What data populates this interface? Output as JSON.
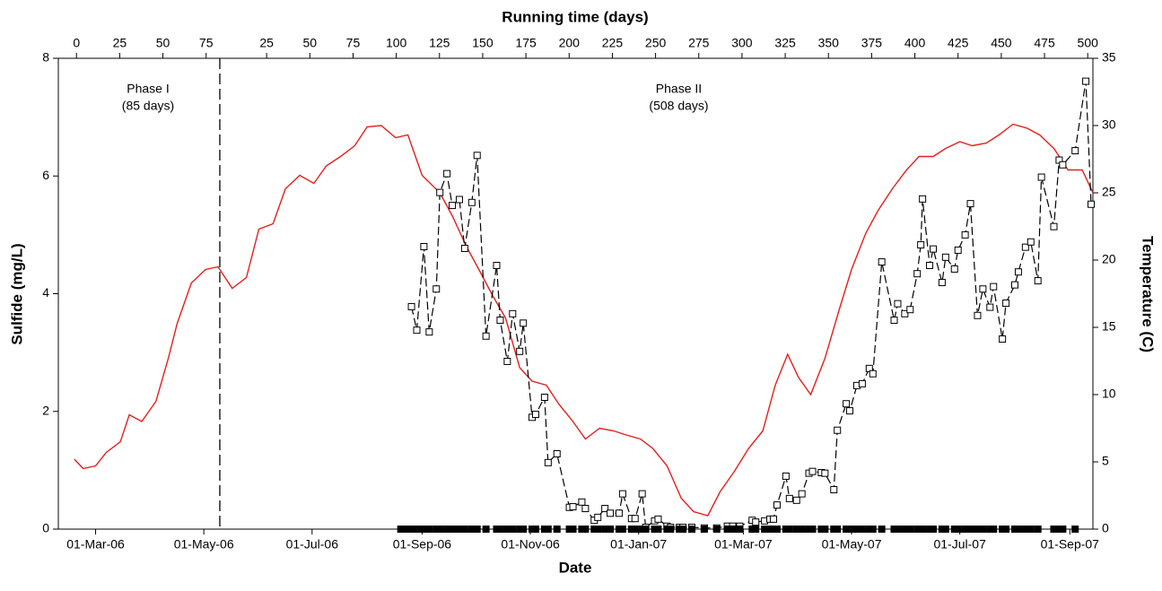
{
  "chart_data": {
    "type": "line",
    "xlabel": "Date",
    "ylabel": "Sulfide (mg/L)",
    "y2label": "Temperature (C)",
    "x2label": "Running time (days)",
    "xlim": [
      "2006-02-08",
      "2007-09-14"
    ],
    "xticks": [
      {
        "value": "2006-03-01",
        "label": "01-Mar-06"
      },
      {
        "value": "2006-05-01",
        "label": "01-May-06"
      },
      {
        "value": "2006-07-01",
        "label": "01-Jul-06"
      },
      {
        "value": "2006-09-01",
        "label": "01-Sep-06"
      },
      {
        "value": "2006-11-01",
        "label": "01-Nov-06"
      },
      {
        "value": "2007-01-01",
        "label": "01-Jan-07"
      },
      {
        "value": "2007-03-01",
        "label": "01-Mar-07"
      },
      {
        "value": "2007-05-01",
        "label": "01-May-07"
      },
      {
        "value": "2007-07-01",
        "label": "01-Jul-07"
      },
      {
        "value": "2007-09-01",
        "label": "01-Sep-07"
      }
    ],
    "x2lim": [
      -95.5,
      503
    ],
    "x2ticks": [
      {
        "value": -85,
        "label": "0"
      },
      {
        "value": -60,
        "label": "25"
      },
      {
        "value": -35,
        "label": "50"
      },
      {
        "value": -10,
        "label": "75"
      },
      25,
      50,
      75,
      100,
      125,
      150,
      175,
      200,
      225,
      250,
      275,
      300,
      325,
      350,
      375,
      400,
      425,
      450,
      475,
      500
    ],
    "ylim": [
      0,
      8
    ],
    "yticks": [
      0,
      2,
      4,
      6,
      8
    ],
    "y2lim": [
      0,
      35
    ],
    "y2ticks": [
      0,
      5,
      10,
      15,
      20,
      25,
      30,
      35
    ],
    "phase_boundary": "2006-05-10",
    "annotations": [
      [
        "Phase I",
        "(85 days)"
      ],
      [
        "Phase II",
        "(508 days)"
      ]
    ],
    "series": [
      {
        "color": "#e3201c",
        "axis": "y2",
        "marker": "none",
        "x": [
          "2006-02-17",
          "2006-02-22",
          "2006-03-01",
          "2006-03-07",
          "2006-03-15",
          "2006-03-20",
          "2006-03-27",
          "2006-04-04",
          "2006-04-11",
          "2006-04-16",
          "2006-04-24",
          "2006-05-02",
          "2006-05-09",
          "2006-05-17",
          "2006-05-25",
          "2006-06-01",
          "2006-06-09",
          "2006-06-16",
          "2006-06-24",
          "2006-07-02",
          "2006-07-09",
          "2006-07-17",
          "2006-07-25",
          "2006-08-01",
          "2006-08-09",
          "2006-08-17",
          "2006-08-24",
          "2006-09-01",
          "2006-09-11",
          "2006-09-18",
          "2006-09-26",
          "2006-10-03",
          "2006-10-11",
          "2006-10-18",
          "2006-10-26",
          "2006-11-02",
          "2006-11-10",
          "2006-11-17",
          "2006-11-25",
          "2006-12-02",
          "2006-12-10",
          "2006-12-18",
          "2006-12-25",
          "2007-01-02",
          "2007-01-09",
          "2007-01-17",
          "2007-01-25",
          "2007-02-01",
          "2007-02-09",
          "2007-02-16",
          "2007-02-24",
          "2007-03-04",
          "2007-03-12",
          "2007-03-19",
          "2007-03-26",
          "2007-04-01",
          "2007-04-08",
          "2007-04-16",
          "2007-04-24",
          "2007-05-01",
          "2007-05-09",
          "2007-05-16",
          "2007-05-24",
          "2007-06-01",
          "2007-06-08",
          "2007-06-16",
          "2007-06-23",
          "2007-07-01",
          "2007-07-08",
          "2007-07-16",
          "2007-07-23",
          "2007-07-31",
          "2007-08-08",
          "2007-08-15",
          "2007-08-23",
          "2007-08-31",
          "2007-09-08",
          "2007-09-14"
        ],
        "values": [
          5.2,
          4.5,
          4.7,
          5.7,
          6.5,
          8.5,
          8,
          9.5,
          12.7,
          15.3,
          18.3,
          19.3,
          19.5,
          17.9,
          18.7,
          22.3,
          22.7,
          25.3,
          26.3,
          25.7,
          27,
          27.7,
          28.5,
          29.9,
          30,
          29.1,
          29.3,
          26.3,
          25,
          23.3,
          21,
          19.3,
          17.3,
          15.7,
          12,
          11,
          10.7,
          9.3,
          8,
          6.7,
          7.5,
          7.3,
          7,
          6.7,
          6,
          4.7,
          2.3,
          1.3,
          1,
          2.8,
          4.3,
          6,
          7.3,
          10.7,
          13,
          11.3,
          10,
          12.7,
          16.3,
          19.3,
          22,
          23.7,
          25.3,
          26.7,
          27.7,
          27.7,
          28.3,
          28.8,
          28.5,
          28.7,
          29.3,
          30.1,
          29.8,
          29.3,
          28.3,
          26.7,
          26.7,
          25
        ]
      },
      {
        "color": "#000000",
        "axis": "y",
        "marker": "open-square",
        "dashed": true,
        "x": [
          "2006-08-26",
          "2006-08-29",
          "2006-09-02",
          "2006-09-05",
          "2006-09-09",
          "2006-09-11",
          "2006-09-15",
          "2006-09-18",
          "2006-09-22",
          "2006-09-25",
          "2006-09-29",
          "2006-10-02",
          "2006-10-07",
          "2006-10-13",
          "2006-10-15",
          "2006-10-19",
          "2006-10-22",
          "2006-10-26",
          "2006-10-28",
          "2006-11-02",
          "2006-11-04",
          "2006-11-09",
          "2006-11-11",
          "2006-11-16",
          "2006-11-23",
          "2006-11-25",
          "2006-11-30",
          "2006-12-02",
          "2006-12-07",
          "2006-12-09",
          "2006-12-13",
          "2006-12-16",
          "2006-12-21",
          "2006-12-23",
          "2006-12-28",
          "2006-12-30",
          "2007-01-03",
          "2007-01-05",
          "2007-01-10",
          "2007-01-12",
          "2007-01-17",
          "2007-01-19",
          "2007-01-24",
          "2007-01-26",
          "2007-01-31",
          "2007-02-07",
          "2007-02-14",
          "2007-02-20",
          "2007-02-23",
          "2007-02-27",
          "2007-03-06",
          "2007-03-08",
          "2007-03-13",
          "2007-03-16",
          "2007-03-18",
          "2007-03-20",
          "2007-03-25",
          "2007-03-27",
          "2007-03-31",
          "2007-04-03",
          "2007-04-07",
          "2007-04-09",
          "2007-04-14",
          "2007-04-16",
          "2007-04-21",
          "2007-04-23",
          "2007-04-28",
          "2007-04-30",
          "2007-05-04",
          "2007-05-07",
          "2007-05-11",
          "2007-05-13",
          "2007-05-18",
          "2007-05-25",
          "2007-05-27",
          "2007-05-31",
          "2007-06-03",
          "2007-06-07",
          "2007-06-09",
          "2007-06-10",
          "2007-06-14",
          "2007-06-16",
          "2007-06-21",
          "2007-06-23",
          "2007-06-28",
          "2007-06-30",
          "2007-07-04",
          "2007-07-07",
          "2007-07-11",
          "2007-07-14",
          "2007-07-18",
          "2007-07-20",
          "2007-07-25",
          "2007-07-27",
          "2007-08-01",
          "2007-08-03",
          "2007-08-07",
          "2007-08-10",
          "2007-08-14",
          "2007-08-16",
          "2007-08-23",
          "2007-08-26",
          "2007-08-28",
          "2007-09-04",
          "2007-09-10",
          "2007-09-13"
        ],
        "values": [
          3.78,
          3.38,
          4.8,
          3.35,
          4.08,
          5.72,
          6.04,
          5.5,
          5.6,
          4.77,
          5.55,
          6.35,
          3.28,
          4.48,
          3.55,
          2.85,
          3.66,
          3.02,
          3.5,
          1.9,
          1.95,
          2.24,
          1.13,
          1.28,
          0.37,
          0.38,
          0.46,
          0.35,
          0.15,
          0.2,
          0.35,
          0.27,
          0.27,
          0.6,
          0.18,
          0.18,
          0.6,
          0.03,
          0.14,
          0.17,
          0.05,
          0.03,
          0.03,
          0.03,
          0.03,
          0.02,
          0.02,
          0.05,
          0.05,
          0.05,
          0.15,
          0.12,
          0.14,
          0.17,
          0.17,
          0.41,
          0.9,
          0.52,
          0.49,
          0.6,
          0.95,
          0.98,
          0.96,
          0.95,
          0.67,
          1.68,
          2.13,
          2.01,
          2.44,
          2.47,
          2.73,
          2.64,
          4.54,
          3.55,
          3.83,
          3.66,
          3.73,
          4.34,
          4.83,
          5.61,
          4.48,
          4.76,
          4.19,
          4.62,
          4.42,
          4.74,
          5.0,
          5.53,
          3.63,
          4.08,
          3.77,
          4.12,
          3.23,
          3.84,
          4.15,
          4.37,
          4.79,
          4.88,
          4.22,
          5.98,
          5.14,
          6.27,
          6.19,
          6.43,
          7.61,
          5.52
        ]
      },
      {
        "color": "#000000",
        "axis": "y",
        "marker": "filled-square",
        "dashed": false,
        "noline": true,
        "x": [
          "2006-08-20",
          "2006-08-23",
          "2006-08-26",
          "2006-08-29",
          "2006-09-02",
          "2006-09-05",
          "2006-09-09",
          "2006-09-11",
          "2006-09-15",
          "2006-09-18",
          "2006-09-22",
          "2006-09-25",
          "2006-09-29",
          "2006-10-02",
          "2006-10-07",
          "2006-10-13",
          "2006-10-15",
          "2006-10-19",
          "2006-10-22",
          "2006-10-26",
          "2006-10-28",
          "2006-11-02",
          "2006-11-04",
          "2006-11-09",
          "2006-11-11",
          "2006-11-16",
          "2006-11-23",
          "2006-11-25",
          "2006-11-30",
          "2006-12-02",
          "2006-12-07",
          "2006-12-09",
          "2006-12-13",
          "2006-12-16",
          "2006-12-21",
          "2006-12-23",
          "2006-12-28",
          "2006-12-30",
          "2007-01-03",
          "2007-01-05",
          "2007-01-10",
          "2007-01-12",
          "2007-01-17",
          "2007-01-19",
          "2007-01-24",
          "2007-01-26",
          "2007-01-31",
          "2007-02-07",
          "2007-02-14",
          "2007-02-20",
          "2007-02-23",
          "2007-02-27",
          "2007-03-06",
          "2007-03-08",
          "2007-03-13",
          "2007-03-16",
          "2007-03-18",
          "2007-03-20",
          "2007-03-25",
          "2007-03-27",
          "2007-03-31",
          "2007-04-03",
          "2007-04-07",
          "2007-04-09",
          "2007-04-14",
          "2007-04-16",
          "2007-04-21",
          "2007-04-23",
          "2007-04-28",
          "2007-04-30",
          "2007-05-04",
          "2007-05-07",
          "2007-05-11",
          "2007-05-13",
          "2007-05-18",
          "2007-05-25",
          "2007-05-27",
          "2007-05-31",
          "2007-06-03",
          "2007-06-07",
          "2007-06-09",
          "2007-06-10",
          "2007-06-14",
          "2007-06-16",
          "2007-06-21",
          "2007-06-23",
          "2007-06-28",
          "2007-06-30",
          "2007-07-04",
          "2007-07-07",
          "2007-07-11",
          "2007-07-14",
          "2007-07-18",
          "2007-07-20",
          "2007-07-25",
          "2007-07-27",
          "2007-08-01",
          "2007-08-03",
          "2007-08-07",
          "2007-08-10",
          "2007-08-14",
          "2007-08-23",
          "2007-08-26",
          "2007-08-28",
          "2007-09-04"
        ],
        "values": [
          0,
          0,
          0,
          0,
          0,
          0,
          0,
          0,
          0,
          0,
          0,
          0,
          0,
          0,
          0,
          0,
          0,
          0,
          0,
          0,
          0,
          0,
          0,
          0,
          0,
          0,
          0,
          0,
          0,
          0,
          0,
          0,
          0,
          0,
          0,
          0,
          0,
          0,
          0,
          0,
          0,
          0,
          0,
          0,
          0,
          0,
          0,
          0,
          0,
          0,
          0,
          0,
          0,
          0,
          0,
          0,
          0,
          0,
          0,
          0,
          0,
          0,
          0,
          0,
          0,
          0,
          0,
          0,
          0,
          0,
          0,
          0,
          0,
          0,
          0,
          0,
          0,
          0,
          0,
          0,
          0,
          0,
          0,
          0,
          0,
          0,
          0,
          0,
          0,
          0,
          0,
          0,
          0,
          0,
          0,
          0,
          0,
          0,
          0,
          0,
          0,
          0,
          0,
          0,
          0
        ]
      }
    ]
  }
}
